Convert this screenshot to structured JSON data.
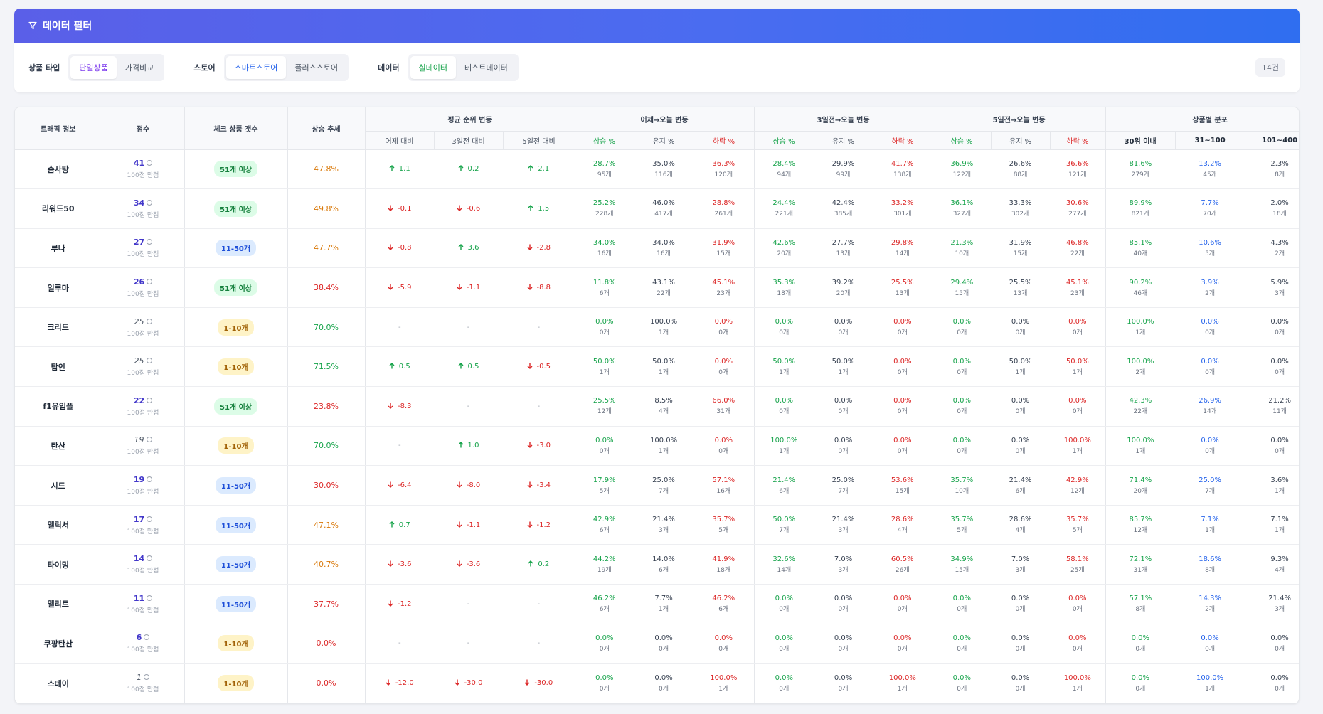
{
  "filter": {
    "title": "데이터 필터",
    "groups": [
      {
        "label": "상품 타입",
        "options": [
          "단일상품",
          "가격비교"
        ],
        "active": 0,
        "theme": "purple"
      },
      {
        "label": "스토어",
        "options": [
          "스마트스토어",
          "플러스스토어"
        ],
        "active": 0,
        "theme": "blue"
      },
      {
        "label": "데이터",
        "options": [
          "실데이터",
          "테스트데이터"
        ],
        "active": 0,
        "theme": "green"
      }
    ],
    "count": "14건"
  },
  "table": {
    "headers": {
      "traffic": "트래픽 정보",
      "score": "점수",
      "check_count": "체크 상품 갯수",
      "rise_trend": "상승 추세",
      "avg_rank": "평균 순위 변동",
      "yesterday": "어제→오늘 변동",
      "three_day": "3일전→오늘 변동",
      "five_day": "5일전→오늘 변동",
      "distribution": "상품별 분포",
      "rank_sub": [
        "어제 대비",
        "3일전 대비",
        "5일전 대비"
      ],
      "change_sub": [
        "상승 %",
        "유지 %",
        "하락 %"
      ],
      "dist_sub": [
        "30위 이내",
        "31~100",
        "101~400"
      ]
    },
    "score_sub": "100점 만점",
    "rows": [
      {
        "name": "솜사탕",
        "score": "41",
        "score_bold": true,
        "check": "51개 이상",
        "check_type": "b51",
        "trend": "47.8%",
        "trend_color": "t-orange",
        "rank": [
          {
            "d": "up",
            "v": "1.1"
          },
          {
            "d": "up",
            "v": "0.2"
          },
          {
            "d": "up",
            "v": "2.1"
          }
        ],
        "y": [
          [
            "28.7%",
            "95개"
          ],
          [
            "35.0%",
            "116개"
          ],
          [
            "36.3%",
            "120개"
          ]
        ],
        "t": [
          [
            "28.4%",
            "94개"
          ],
          [
            "29.9%",
            "99개"
          ],
          [
            "41.7%",
            "138개"
          ]
        ],
        "f": [
          [
            "36.9%",
            "122개"
          ],
          [
            "26.6%",
            "88개"
          ],
          [
            "36.6%",
            "121개"
          ]
        ],
        "dist": [
          [
            "81.6%",
            "279개"
          ],
          [
            "13.2%",
            "45개"
          ],
          [
            "2.3%",
            "8개"
          ]
        ]
      },
      {
        "name": "리워드50",
        "score": "34",
        "score_bold": true,
        "check": "51개 이상",
        "check_type": "b51",
        "trend": "49.8%",
        "trend_color": "t-orange",
        "rank": [
          {
            "d": "down",
            "v": "-0.1"
          },
          {
            "d": "down",
            "v": "-0.6"
          },
          {
            "d": "up",
            "v": "1.5"
          }
        ],
        "y": [
          [
            "25.2%",
            "228개"
          ],
          [
            "46.0%",
            "417개"
          ],
          [
            "28.8%",
            "261개"
          ]
        ],
        "t": [
          [
            "24.4%",
            "221개"
          ],
          [
            "42.4%",
            "385개"
          ],
          [
            "33.2%",
            "301개"
          ]
        ],
        "f": [
          [
            "36.1%",
            "327개"
          ],
          [
            "33.3%",
            "302개"
          ],
          [
            "30.6%",
            "277개"
          ]
        ],
        "dist": [
          [
            "89.9%",
            "821개"
          ],
          [
            "7.7%",
            "70개"
          ],
          [
            "2.0%",
            "18개"
          ]
        ]
      },
      {
        "name": "루나",
        "score": "27",
        "score_bold": true,
        "check": "11-50개",
        "check_type": "b11",
        "trend": "47.7%",
        "trend_color": "t-orange",
        "rank": [
          {
            "d": "down",
            "v": "-0.8"
          },
          {
            "d": "up",
            "v": "3.6"
          },
          {
            "d": "down",
            "v": "-2.8"
          }
        ],
        "y": [
          [
            "34.0%",
            "16개"
          ],
          [
            "34.0%",
            "16개"
          ],
          [
            "31.9%",
            "15개"
          ]
        ],
        "t": [
          [
            "42.6%",
            "20개"
          ],
          [
            "27.7%",
            "13개"
          ],
          [
            "29.8%",
            "14개"
          ]
        ],
        "f": [
          [
            "21.3%",
            "10개"
          ],
          [
            "31.9%",
            "15개"
          ],
          [
            "46.8%",
            "22개"
          ]
        ],
        "dist": [
          [
            "85.1%",
            "40개"
          ],
          [
            "10.6%",
            "5개"
          ],
          [
            "4.3%",
            "2개"
          ]
        ]
      },
      {
        "name": "일루마",
        "score": "26",
        "score_bold": true,
        "check": "51개 이상",
        "check_type": "b51",
        "trend": "38.4%",
        "trend_color": "t-red",
        "rank": [
          {
            "d": "down",
            "v": "-5.9"
          },
          {
            "d": "down",
            "v": "-1.1"
          },
          {
            "d": "down",
            "v": "-8.8"
          }
        ],
        "y": [
          [
            "11.8%",
            "6개"
          ],
          [
            "43.1%",
            "22개"
          ],
          [
            "45.1%",
            "23개"
          ]
        ],
        "t": [
          [
            "35.3%",
            "18개"
          ],
          [
            "39.2%",
            "20개"
          ],
          [
            "25.5%",
            "13개"
          ]
        ],
        "f": [
          [
            "29.4%",
            "15개"
          ],
          [
            "25.5%",
            "13개"
          ],
          [
            "45.1%",
            "23개"
          ]
        ],
        "dist": [
          [
            "90.2%",
            "46개"
          ],
          [
            "3.9%",
            "2개"
          ],
          [
            "5.9%",
            "3개"
          ]
        ]
      },
      {
        "name": "크리드",
        "score": "25",
        "score_bold": false,
        "check": "1-10개",
        "check_type": "b1",
        "trend": "70.0%",
        "trend_color": "t-green",
        "rank": [
          {
            "d": "nil",
            "v": "-"
          },
          {
            "d": "nil",
            "v": "-"
          },
          {
            "d": "nil",
            "v": "-"
          }
        ],
        "y": [
          [
            "0.0%",
            "0개"
          ],
          [
            "100.0%",
            "1개"
          ],
          [
            "0.0%",
            "0개"
          ]
        ],
        "t": [
          [
            "0.0%",
            "0개"
          ],
          [
            "0.0%",
            "0개"
          ],
          [
            "0.0%",
            "0개"
          ]
        ],
        "f": [
          [
            "0.0%",
            "0개"
          ],
          [
            "0.0%",
            "0개"
          ],
          [
            "0.0%",
            "0개"
          ]
        ],
        "dist": [
          [
            "100.0%",
            "1개"
          ],
          [
            "0.0%",
            "0개"
          ],
          [
            "0.0%",
            "0개"
          ]
        ]
      },
      {
        "name": "탑인",
        "score": "25",
        "score_bold": false,
        "check": "1-10개",
        "check_type": "b1",
        "trend": "71.5%",
        "trend_color": "t-green",
        "rank": [
          {
            "d": "up",
            "v": "0.5"
          },
          {
            "d": "up",
            "v": "0.5"
          },
          {
            "d": "down",
            "v": "-0.5"
          }
        ],
        "y": [
          [
            "50.0%",
            "1개"
          ],
          [
            "50.0%",
            "1개"
          ],
          [
            "0.0%",
            "0개"
          ]
        ],
        "t": [
          [
            "50.0%",
            "1개"
          ],
          [
            "50.0%",
            "1개"
          ],
          [
            "0.0%",
            "0개"
          ]
        ],
        "f": [
          [
            "0.0%",
            "0개"
          ],
          [
            "50.0%",
            "1개"
          ],
          [
            "50.0%",
            "1개"
          ]
        ],
        "dist": [
          [
            "100.0%",
            "2개"
          ],
          [
            "0.0%",
            "0개"
          ],
          [
            "0.0%",
            "0개"
          ]
        ]
      },
      {
        "name": "f1유입플",
        "score": "22",
        "score_bold": true,
        "check": "51개 이상",
        "check_type": "b51",
        "trend": "23.8%",
        "trend_color": "t-red",
        "rank": [
          {
            "d": "down",
            "v": "-8.3"
          },
          {
            "d": "nil",
            "v": "-"
          },
          {
            "d": "nil",
            "v": "-"
          }
        ],
        "y": [
          [
            "25.5%",
            "12개"
          ],
          [
            "8.5%",
            "4개"
          ],
          [
            "66.0%",
            "31개"
          ]
        ],
        "t": [
          [
            "0.0%",
            "0개"
          ],
          [
            "0.0%",
            "0개"
          ],
          [
            "0.0%",
            "0개"
          ]
        ],
        "f": [
          [
            "0.0%",
            "0개"
          ],
          [
            "0.0%",
            "0개"
          ],
          [
            "0.0%",
            "0개"
          ]
        ],
        "dist": [
          [
            "42.3%",
            "22개"
          ],
          [
            "26.9%",
            "14개"
          ],
          [
            "21.2%",
            "11개"
          ]
        ]
      },
      {
        "name": "탄산",
        "score": "19",
        "score_bold": false,
        "check": "1-10개",
        "check_type": "b1",
        "trend": "70.0%",
        "trend_color": "t-green",
        "rank": [
          {
            "d": "nil",
            "v": "-"
          },
          {
            "d": "up",
            "v": "1.0"
          },
          {
            "d": "down",
            "v": "-3.0"
          }
        ],
        "y": [
          [
            "0.0%",
            "0개"
          ],
          [
            "100.0%",
            "1개"
          ],
          [
            "0.0%",
            "0개"
          ]
        ],
        "t": [
          [
            "100.0%",
            "1개"
          ],
          [
            "0.0%",
            "0개"
          ],
          [
            "0.0%",
            "0개"
          ]
        ],
        "f": [
          [
            "0.0%",
            "0개"
          ],
          [
            "0.0%",
            "0개"
          ],
          [
            "100.0%",
            "1개"
          ]
        ],
        "dist": [
          [
            "100.0%",
            "1개"
          ],
          [
            "0.0%",
            "0개"
          ],
          [
            "0.0%",
            "0개"
          ]
        ]
      },
      {
        "name": "시드",
        "score": "19",
        "score_bold": true,
        "check": "11-50개",
        "check_type": "b11",
        "trend": "30.0%",
        "trend_color": "t-red",
        "rank": [
          {
            "d": "down",
            "v": "-6.4"
          },
          {
            "d": "down",
            "v": "-8.0"
          },
          {
            "d": "down",
            "v": "-3.4"
          }
        ],
        "y": [
          [
            "17.9%",
            "5개"
          ],
          [
            "25.0%",
            "7개"
          ],
          [
            "57.1%",
            "16개"
          ]
        ],
        "t": [
          [
            "21.4%",
            "6개"
          ],
          [
            "25.0%",
            "7개"
          ],
          [
            "53.6%",
            "15개"
          ]
        ],
        "f": [
          [
            "35.7%",
            "10개"
          ],
          [
            "21.4%",
            "6개"
          ],
          [
            "42.9%",
            "12개"
          ]
        ],
        "dist": [
          [
            "71.4%",
            "20개"
          ],
          [
            "25.0%",
            "7개"
          ],
          [
            "3.6%",
            "1개"
          ]
        ]
      },
      {
        "name": "엘릭서",
        "score": "17",
        "score_bold": true,
        "check": "11-50개",
        "check_type": "b11",
        "trend": "47.1%",
        "trend_color": "t-orange",
        "rank": [
          {
            "d": "up",
            "v": "0.7"
          },
          {
            "d": "down",
            "v": "-1.1"
          },
          {
            "d": "down",
            "v": "-1.2"
          }
        ],
        "y": [
          [
            "42.9%",
            "6개"
          ],
          [
            "21.4%",
            "3개"
          ],
          [
            "35.7%",
            "5개"
          ]
        ],
        "t": [
          [
            "50.0%",
            "7개"
          ],
          [
            "21.4%",
            "3개"
          ],
          [
            "28.6%",
            "4개"
          ]
        ],
        "f": [
          [
            "35.7%",
            "5개"
          ],
          [
            "28.6%",
            "4개"
          ],
          [
            "35.7%",
            "5개"
          ]
        ],
        "dist": [
          [
            "85.7%",
            "12개"
          ],
          [
            "7.1%",
            "1개"
          ],
          [
            "7.1%",
            "1개"
          ]
        ]
      },
      {
        "name": "타이밍",
        "score": "14",
        "score_bold": true,
        "check": "11-50개",
        "check_type": "b11",
        "trend": "40.7%",
        "trend_color": "t-orange",
        "rank": [
          {
            "d": "down",
            "v": "-3.6"
          },
          {
            "d": "down",
            "v": "-3.6"
          },
          {
            "d": "up",
            "v": "0.2"
          }
        ],
        "y": [
          [
            "44.2%",
            "19개"
          ],
          [
            "14.0%",
            "6개"
          ],
          [
            "41.9%",
            "18개"
          ]
        ],
        "t": [
          [
            "32.6%",
            "14개"
          ],
          [
            "7.0%",
            "3개"
          ],
          [
            "60.5%",
            "26개"
          ]
        ],
        "f": [
          [
            "34.9%",
            "15개"
          ],
          [
            "7.0%",
            "3개"
          ],
          [
            "58.1%",
            "25개"
          ]
        ],
        "dist": [
          [
            "72.1%",
            "31개"
          ],
          [
            "18.6%",
            "8개"
          ],
          [
            "9.3%",
            "4개"
          ]
        ]
      },
      {
        "name": "엘리트",
        "score": "11",
        "score_bold": true,
        "check": "11-50개",
        "check_type": "b11",
        "trend": "37.7%",
        "trend_color": "t-red",
        "rank": [
          {
            "d": "down",
            "v": "-1.2"
          },
          {
            "d": "nil",
            "v": "-"
          },
          {
            "d": "nil",
            "v": "-"
          }
        ],
        "y": [
          [
            "46.2%",
            "6개"
          ],
          [
            "7.7%",
            "1개"
          ],
          [
            "46.2%",
            "6개"
          ]
        ],
        "t": [
          [
            "0.0%",
            "0개"
          ],
          [
            "0.0%",
            "0개"
          ],
          [
            "0.0%",
            "0개"
          ]
        ],
        "f": [
          [
            "0.0%",
            "0개"
          ],
          [
            "0.0%",
            "0개"
          ],
          [
            "0.0%",
            "0개"
          ]
        ],
        "dist": [
          [
            "57.1%",
            "8개"
          ],
          [
            "14.3%",
            "2개"
          ],
          [
            "21.4%",
            "3개"
          ]
        ]
      },
      {
        "name": "쿠팡탄산",
        "score": "6",
        "score_bold": true,
        "check": "1-10개",
        "check_type": "b1",
        "trend": "0.0%",
        "trend_color": "t-red",
        "rank": [
          {
            "d": "nil",
            "v": "-"
          },
          {
            "d": "nil",
            "v": "-"
          },
          {
            "d": "nil",
            "v": "-"
          }
        ],
        "y": [
          [
            "0.0%",
            "0개"
          ],
          [
            "0.0%",
            "0개"
          ],
          [
            "0.0%",
            "0개"
          ]
        ],
        "t": [
          [
            "0.0%",
            "0개"
          ],
          [
            "0.0%",
            "0개"
          ],
          [
            "0.0%",
            "0개"
          ]
        ],
        "f": [
          [
            "0.0%",
            "0개"
          ],
          [
            "0.0%",
            "0개"
          ],
          [
            "0.0%",
            "0개"
          ]
        ],
        "dist": [
          [
            "0.0%",
            "0개"
          ],
          [
            "0.0%",
            "0개"
          ],
          [
            "0.0%",
            "0개"
          ]
        ]
      },
      {
        "name": "스테이",
        "score": "1",
        "score_bold": false,
        "check": "1-10개",
        "check_type": "b1",
        "trend": "0.0%",
        "trend_color": "t-red",
        "rank": [
          {
            "d": "down",
            "v": "-12.0"
          },
          {
            "d": "down",
            "v": "-30.0"
          },
          {
            "d": "down",
            "v": "-30.0"
          }
        ],
        "y": [
          [
            "0.0%",
            "0개"
          ],
          [
            "0.0%",
            "0개"
          ],
          [
            "100.0%",
            "1개"
          ]
        ],
        "t": [
          [
            "0.0%",
            "0개"
          ],
          [
            "0.0%",
            "0개"
          ],
          [
            "100.0%",
            "1개"
          ]
        ],
        "f": [
          [
            "0.0%",
            "0개"
          ],
          [
            "0.0%",
            "0개"
          ],
          [
            "100.0%",
            "1개"
          ]
        ],
        "dist": [
          [
            "0.0%",
            "0개"
          ],
          [
            "100.0%",
            "1개"
          ],
          [
            "0.0%",
            "0개"
          ]
        ]
      }
    ]
  }
}
